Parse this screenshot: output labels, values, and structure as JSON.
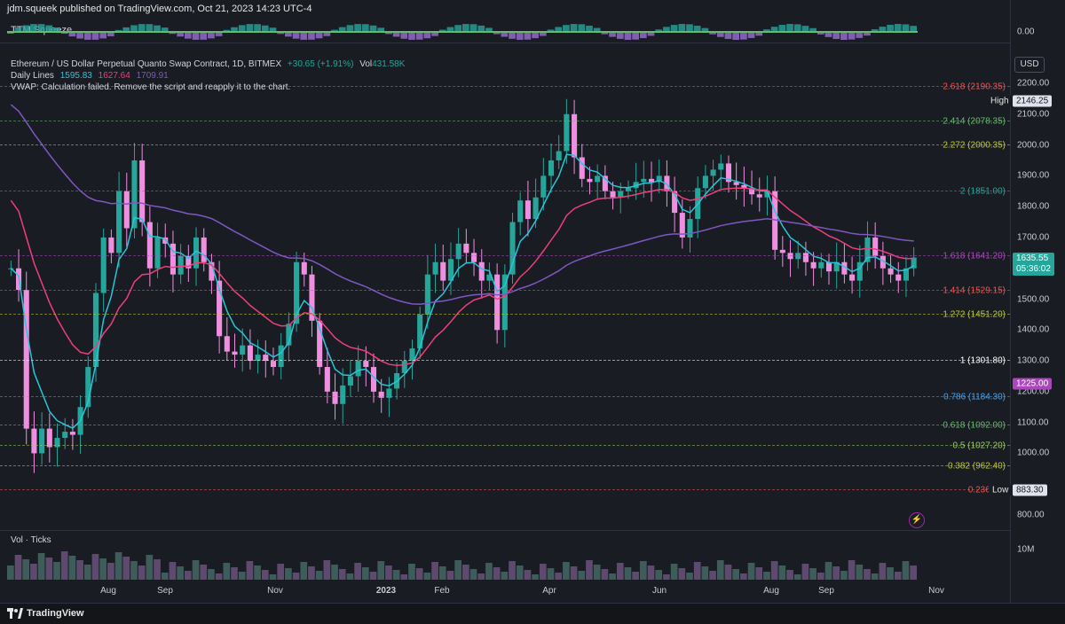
{
  "header": {
    "published": "jdm.squeek published on TradingView.com, Oct 21, 2023 14:23 UTC-4"
  },
  "ttm": {
    "label": "TTM Squeeze",
    "value_hidden": "0.00",
    "axis_value": "0.00"
  },
  "legend": {
    "symbol": "Ethereum / US Dollar Perpetual Quanto Swap Contract, 1D, BITMEX",
    "change": "+30.65 (+1.91%)",
    "vol_label": "Vol",
    "vol_value": "431.58K",
    "daily_lines_label": "Daily Lines",
    "daily_lines_values": [
      "1595.83",
      "1627.64",
      "1709.91"
    ],
    "vwap_msg": "VWAP: Calculation failed. Remove the script and reapply it to the chart."
  },
  "currency_button": "USD",
  "price_axis": {
    "ticks": [
      "2200.00",
      "2100.00",
      "2000.00",
      "1900.00",
      "1800.00",
      "1700.00",
      "1500.00",
      "1400.00",
      "1300.00",
      "1200.00",
      "1100.00",
      "1000.00",
      "800.00"
    ],
    "min": 700,
    "max": 2250
  },
  "fib_levels": [
    {
      "label": "2.618 (2190.35)",
      "price": 2190.35,
      "color": "#ef5350"
    },
    {
      "label": "2.414 (2078.35)",
      "price": 2078.35,
      "color": "#66bb6a"
    },
    {
      "label": "2.272 (2000.35)",
      "price": 2000.35,
      "color": "#c0ca33"
    },
    {
      "label": "2 (1851.00)",
      "price": 1851.0,
      "color": "#26a69a"
    },
    {
      "label": "1.618 (1641.20)",
      "price": 1641.2,
      "color": "#ab47bc"
    },
    {
      "label": "1.414 (1529.15)",
      "price": 1529.15,
      "color": "#ef5350"
    },
    {
      "label": "1.272 (1451.20)",
      "price": 1451.2,
      "color": "#c0ca33"
    },
    {
      "label": "1 (1301.80)",
      "price": 1301.8,
      "color": "#ffffff"
    },
    {
      "label": "0.786 (1184.30)",
      "price": 1184.3,
      "color": "#42a5f5"
    },
    {
      "label": "0.618 (1092.00)",
      "price": 1092.0,
      "color": "#66bb6a"
    },
    {
      "label": "0.5 (1027.20)",
      "price": 1027.2,
      "color": "#9ccc65"
    },
    {
      "label": "0.382 (962.40)",
      "price": 962.4,
      "color": "#c0ca33"
    },
    {
      "label": "0.236 (88",
      "price": 883.3,
      "color": "#ef5350"
    }
  ],
  "badges": {
    "high_label": "High",
    "high_value": "2146.25",
    "last_price": "1635.55",
    "countdown": "05:36:02",
    "level_1225": "1225.00",
    "low_label": "Low",
    "low_value": "883.30"
  },
  "volume_pane": {
    "label": "Vol · Ticks",
    "axis_label": "10M"
  },
  "time_axis": [
    "Aug",
    "Sep",
    "Nov",
    "2023",
    "Feb",
    "Apr",
    "Jun",
    "Aug",
    "Sep",
    "Nov"
  ],
  "footer": {
    "brand": "TradingView"
  },
  "colors": {
    "up": "#26a69a",
    "down": "#ef8fe0",
    "ema_teal": "#26c6da",
    "ema_pink": "#ec407a",
    "ema_purple": "#7e57c2"
  },
  "price_series": [
    1600,
    1530,
    1080,
    1000,
    1080,
    1020,
    1050,
    1070,
    1060,
    1150,
    1280,
    1520,
    1700,
    1650,
    1850,
    1730,
    1950,
    1750,
    1600,
    1700,
    1680,
    1580,
    1640,
    1600,
    1700,
    1620,
    1560,
    1380,
    1330,
    1320,
    1350,
    1300,
    1320,
    1300,
    1280,
    1350,
    1420,
    1620,
    1580,
    1430,
    1280,
    1200,
    1160,
    1220,
    1250,
    1300,
    1280,
    1200,
    1180,
    1210,
    1260,
    1300,
    1340,
    1450,
    1580,
    1620,
    1560,
    1630,
    1680,
    1650,
    1620,
    1560,
    1580,
    1400,
    1580,
    1750,
    1820,
    1760,
    1830,
    1900,
    1950,
    1980,
    2100,
    1960,
    1890,
    1880,
    1900,
    1850,
    1830,
    1850,
    1860,
    1880,
    1890,
    1880,
    1900,
    1850,
    1780,
    1700,
    1760,
    1860,
    1900,
    1920,
    1940,
    1880,
    1870,
    1860,
    1840,
    1830,
    1850,
    1660,
    1650,
    1630,
    1650,
    1620,
    1600,
    1620,
    1590,
    1620,
    1580,
    1560,
    1620,
    1700,
    1640,
    1600,
    1580,
    1560,
    1600,
    1635
  ]
}
